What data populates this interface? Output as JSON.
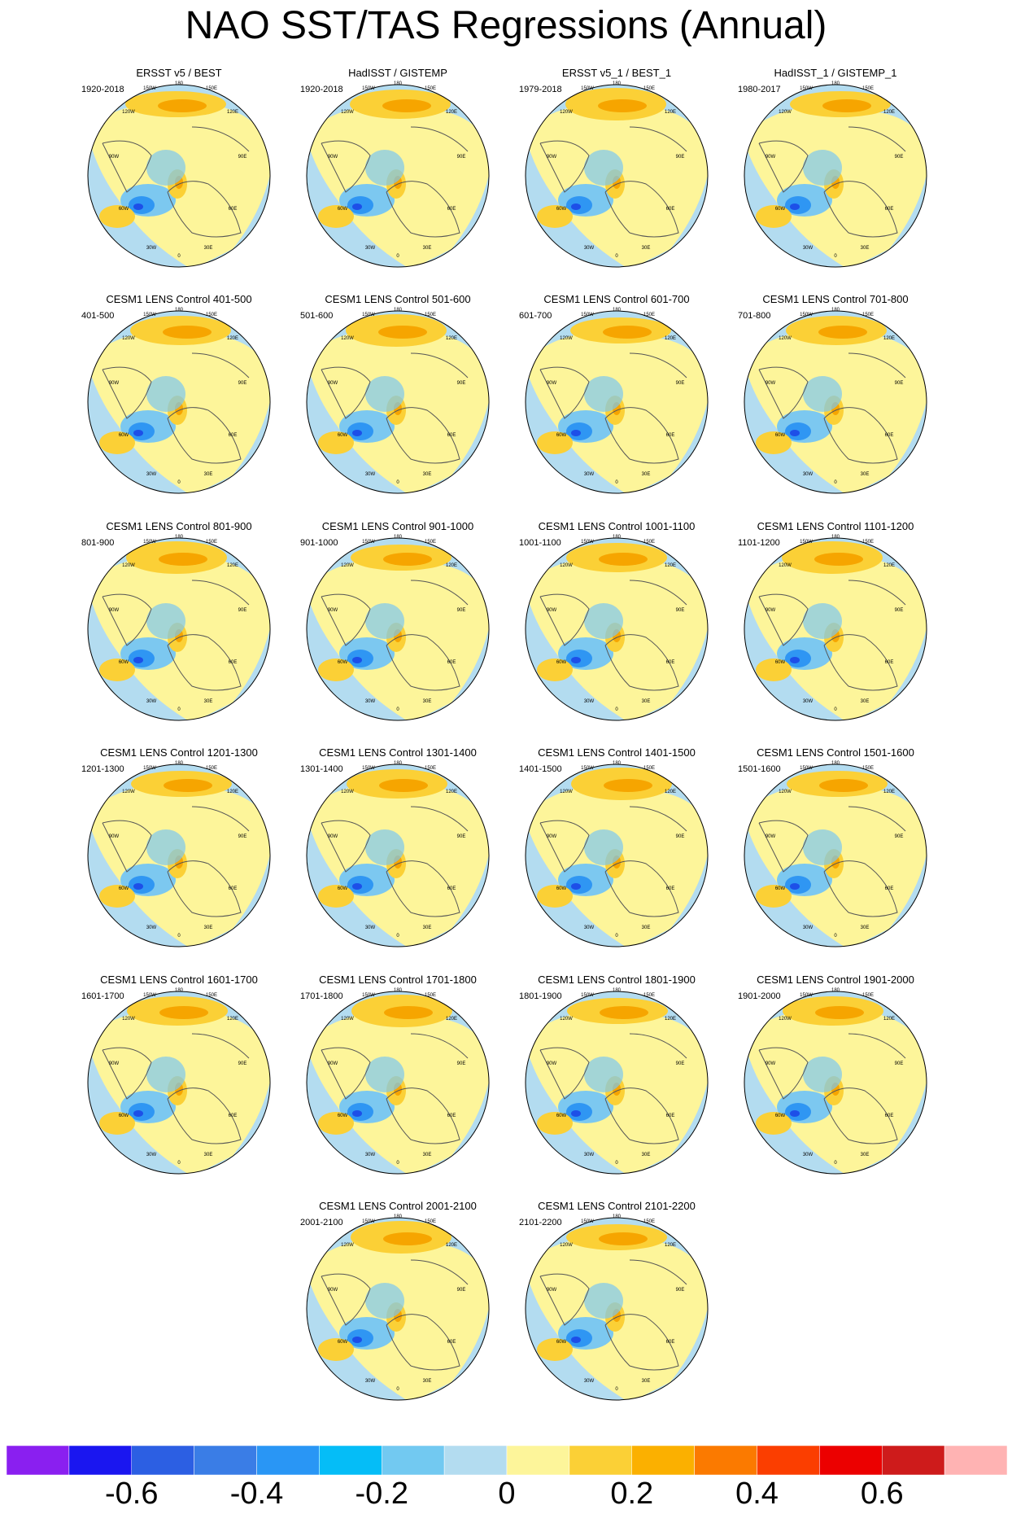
{
  "title": "NAO SST/TAS Regressions (Annual)",
  "lon_labels": [
    "180",
    "150W",
    "150E",
    "120W",
    "120E",
    "90W",
    "90E",
    "60W",
    "60E",
    "30W",
    "30E",
    "0"
  ],
  "colors": {
    "land_outline": "#555555",
    "ocean_neutral": "#b3dcf0",
    "warm_1": "#fdf59a",
    "warm_2": "#fbd036",
    "warm_3": "#f6a500",
    "cold_1": "#7cc8f0",
    "cold_2": "#2f96f3",
    "cold_3": "#1d4fe8"
  },
  "panels": [
    {
      "title": "ERSST v5 / BEST",
      "period": "1920-2018"
    },
    {
      "title": "HadISST / GISTEMP",
      "period": "1920-2018"
    },
    {
      "title": "ERSST v5_1 / BEST_1",
      "period": "1979-2018"
    },
    {
      "title": "HadISST_1 / GISTEMP_1",
      "period": "1980-2017"
    },
    {
      "title": "CESM1 LENS Control 401-500",
      "period": "401-500"
    },
    {
      "title": "CESM1 LENS Control 501-600",
      "period": "501-600"
    },
    {
      "title": "CESM1 LENS Control 601-700",
      "period": "601-700"
    },
    {
      "title": "CESM1 LENS Control 701-800",
      "period": "701-800"
    },
    {
      "title": "CESM1 LENS Control 801-900",
      "period": "801-900"
    },
    {
      "title": "CESM1 LENS Control 901-1000",
      "period": "901-1000"
    },
    {
      "title": "CESM1 LENS Control 1001-1100",
      "period": "1001-1100"
    },
    {
      "title": "CESM1 LENS Control 1101-1200",
      "period": "1101-1200"
    },
    {
      "title": "CESM1 LENS Control 1201-1300",
      "period": "1201-1300"
    },
    {
      "title": "CESM1 LENS Control 1301-1400",
      "period": "1301-1400"
    },
    {
      "title": "CESM1 LENS Control 1401-1500",
      "period": "1401-1500"
    },
    {
      "title": "CESM1 LENS Control 1501-1600",
      "period": "1501-1600"
    },
    {
      "title": "CESM1 LENS Control 1601-1700",
      "period": "1601-1700"
    },
    {
      "title": "CESM1 LENS Control 1701-1800",
      "period": "1701-1800"
    },
    {
      "title": "CESM1 LENS Control 1801-1900",
      "period": "1801-1900"
    },
    {
      "title": "CESM1 LENS Control 1901-2000",
      "period": "1901-2000"
    },
    {
      "title": "CESM1 LENS Control 2001-2100",
      "period": "2001-2100"
    },
    {
      "title": "CESM1 LENS Control 2101-2200",
      "period": "2101-2200"
    }
  ],
  "colorbar": {
    "colors": [
      "#8a1ff0",
      "#1a16f0",
      "#2c5fe3",
      "#3a7de6",
      "#2996f5",
      "#05bdf7",
      "#72c9f1",
      "#b3dcf0",
      "#fdf59a",
      "#fbd036",
      "#fbb000",
      "#fb7a00",
      "#fb3e00",
      "#ec0000",
      "#ce1b1b",
      "#ffb3b3"
    ],
    "labels": [
      "-0.6",
      "-0.4",
      "-0.2",
      "0",
      "0.2",
      "0.4",
      "0.6"
    ]
  }
}
